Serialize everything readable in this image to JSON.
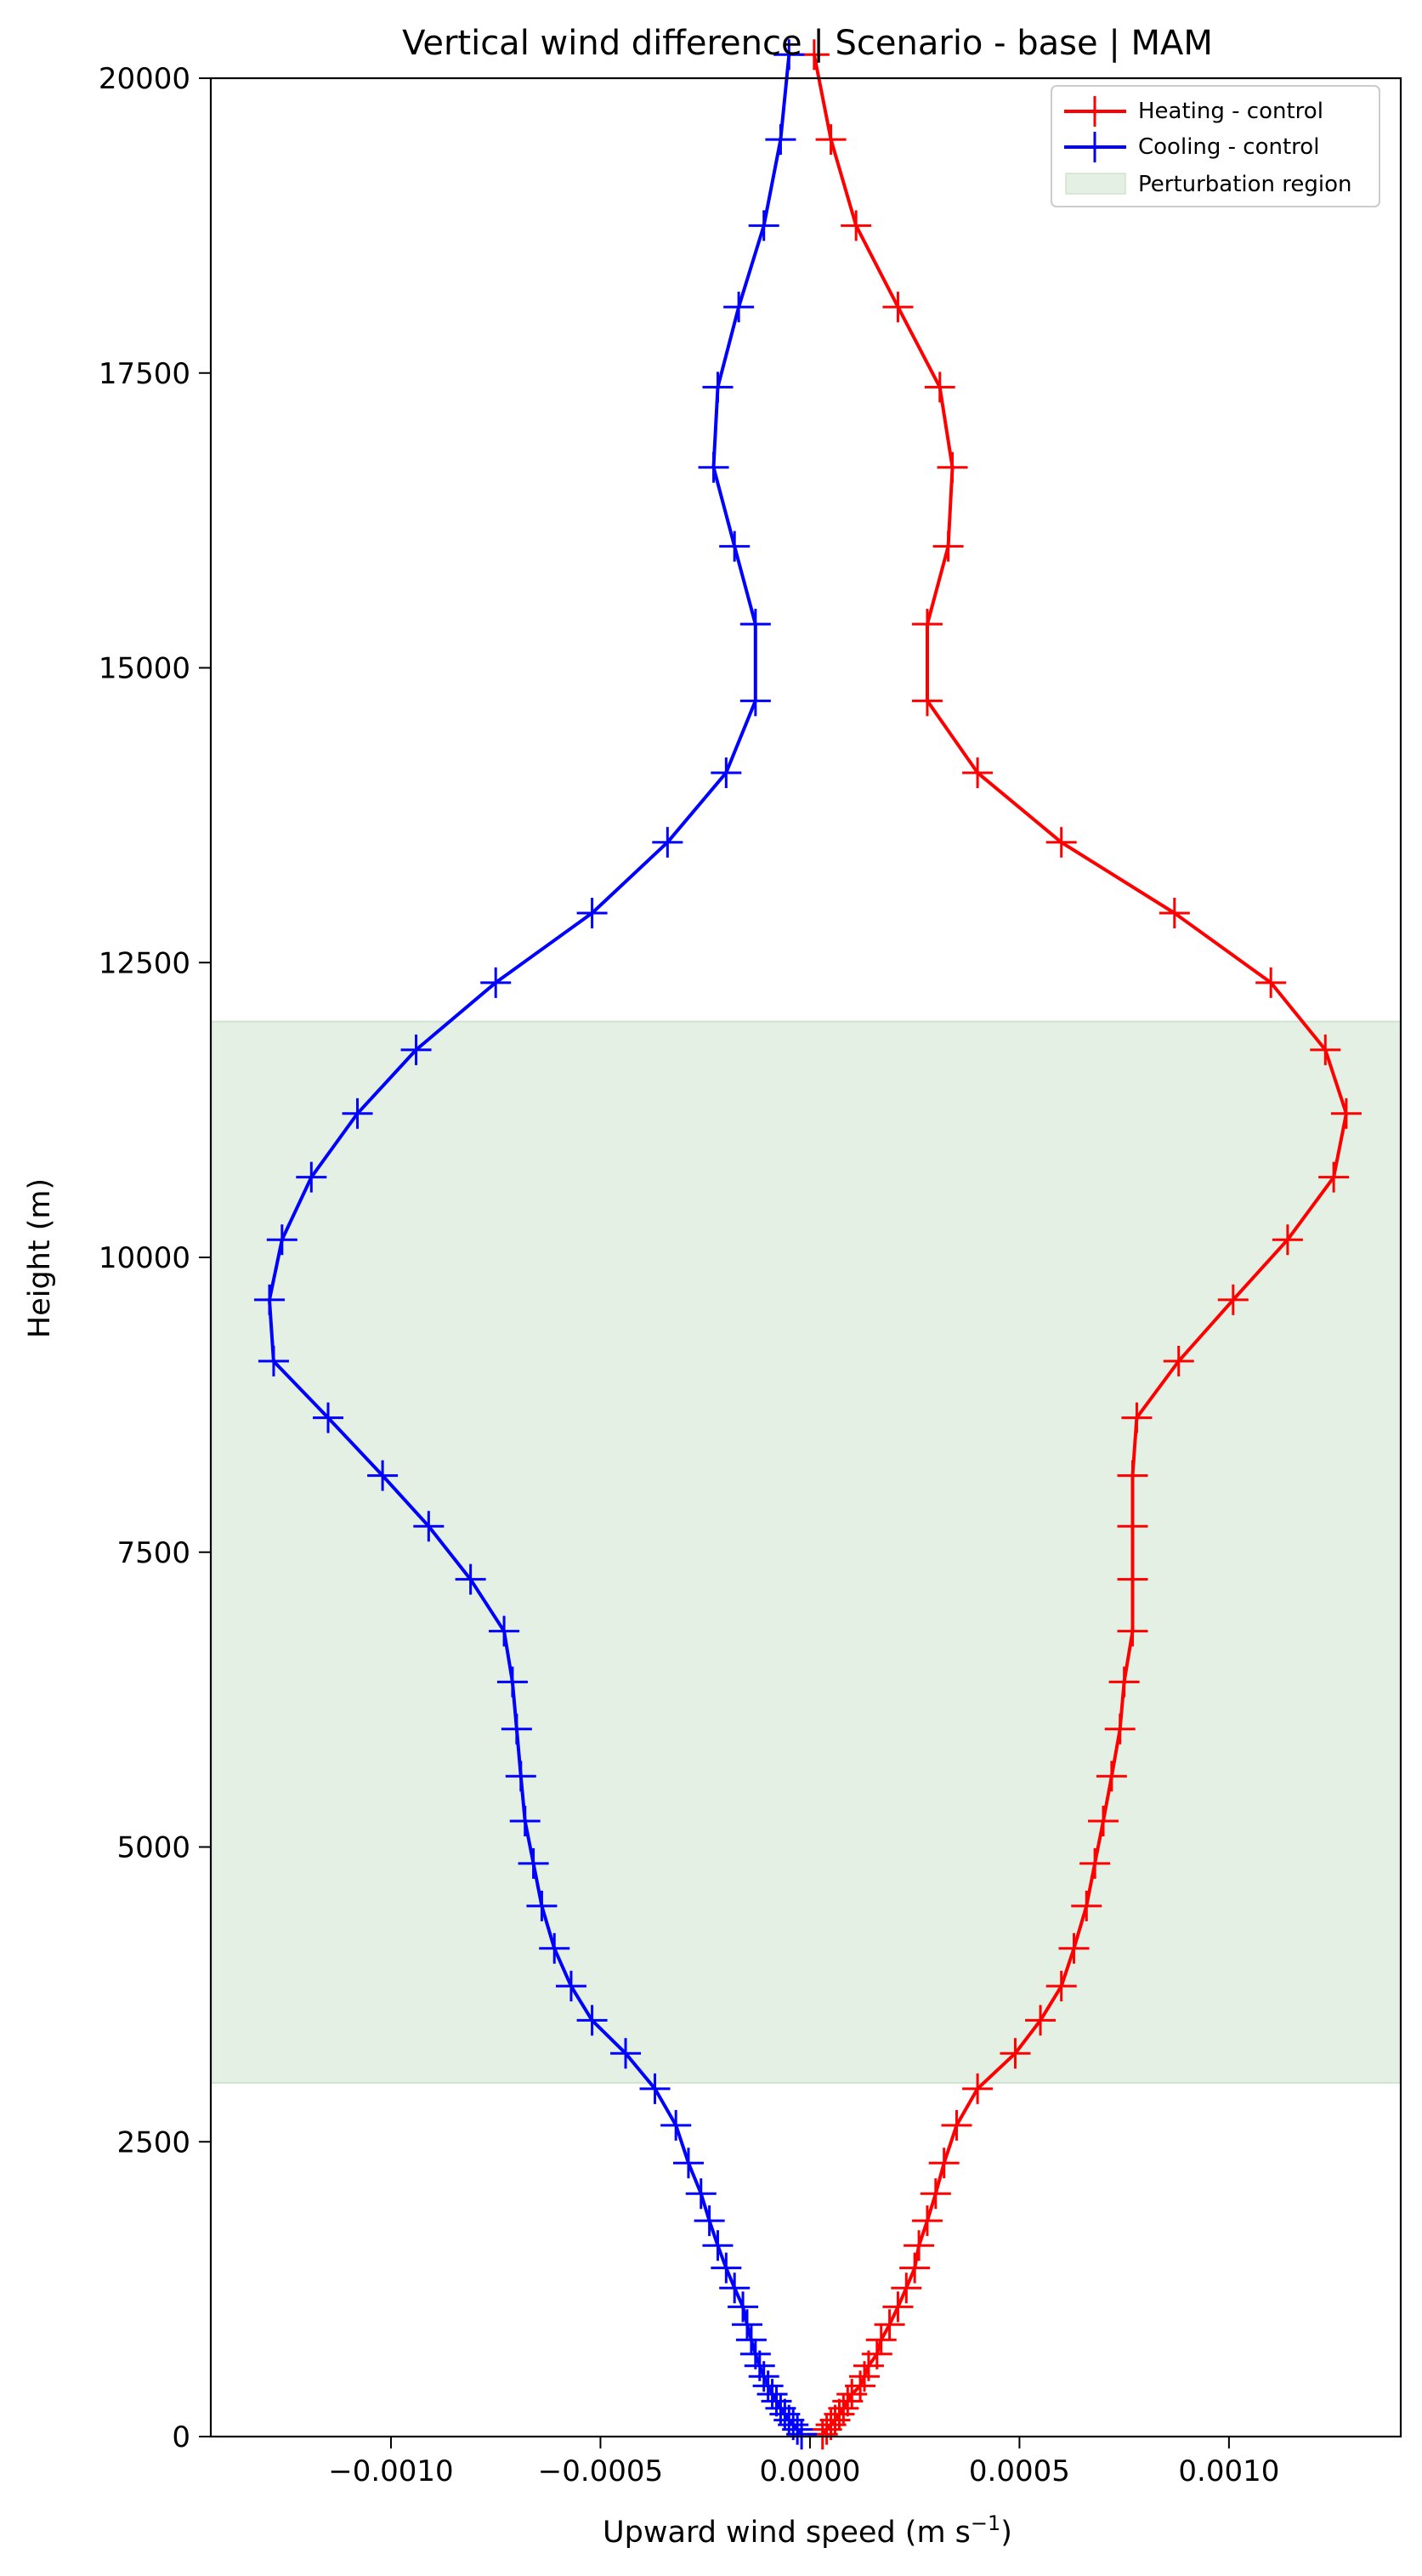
{
  "chart_data": {
    "type": "line",
    "title": "Vertical wind difference | Scenario - base | MAM",
    "xlabel_main": "Upward wind speed (m s",
    "xlabel_sup": "−1",
    "xlabel_end": ")",
    "ylabel": "Height (m)",
    "xlim": [
      -0.00143,
      0.00141
    ],
    "ylim": [
      0,
      20000
    ],
    "x_ticks": [
      -0.001,
      -0.0005,
      0.0,
      0.0005,
      0.001
    ],
    "x_tick_labels": [
      "−0.0010",
      "−0.0005",
      "0.0000",
      "0.0005",
      "0.0010"
    ],
    "y_ticks": [
      0,
      2500,
      5000,
      7500,
      10000,
      12500,
      15000,
      17500,
      20000
    ],
    "y_tick_labels": [
      "0",
      "2500",
      "5000",
      "7500",
      "10000",
      "12500",
      "15000",
      "17500",
      "20000"
    ],
    "legend_position": "top-right",
    "region": {
      "label": "Perturbation region",
      "y_min": 3000,
      "y_max": 12000,
      "color": "#e4f0e4",
      "edge_color": "#cfe3cf"
    },
    "heights": [
      20,
      60,
      100,
      140,
      190,
      240,
      300,
      360,
      430,
      510,
      600,
      700,
      820,
      950,
      1100,
      1260,
      1430,
      1620,
      1830,
      2060,
      2320,
      2640,
      2950,
      3250,
      3530,
      3820,
      4140,
      4500,
      4860,
      5220,
      5600,
      6000,
      6400,
      6830,
      7270,
      7720,
      8150,
      8640,
      9120,
      9640,
      10150,
      10680,
      11220,
      11760,
      12330,
      12920,
      13520,
      14110,
      14720,
      15370,
      16030,
      16700,
      17380,
      18060,
      18750,
      19480,
      20200
    ],
    "series": [
      {
        "name": "Heating - control",
        "color": "#ff0000",
        "values": [
          3e-05,
          4e-05,
          5e-05,
          6e-05,
          7e-05,
          8e-05,
          9e-05,
          0.0001,
          0.00012,
          0.00013,
          0.00014,
          0.00016,
          0.00017,
          0.00019,
          0.00021,
          0.00023,
          0.00025,
          0.00026,
          0.00028,
          0.0003,
          0.00032,
          0.00035,
          0.0004,
          0.00049,
          0.00055,
          0.0006,
          0.00063,
          0.00066,
          0.00068,
          0.0007,
          0.00072,
          0.00074,
          0.00075,
          0.00077,
          0.00077,
          0.00077,
          0.00077,
          0.00078,
          0.00088,
          0.00101,
          0.00114,
          0.00125,
          0.00128,
          0.00123,
          0.0011,
          0.00087,
          0.0006,
          0.0004,
          0.00028,
          0.00028,
          0.00033,
          0.00034,
          0.00031,
          0.00021,
          0.00011,
          5e-05,
          1e-05
        ]
      },
      {
        "name": "Cooling - control",
        "color": "#0000ff",
        "values": [
          -2e-05,
          -3e-05,
          -4e-05,
          -5e-05,
          -6e-05,
          -7e-05,
          -8e-05,
          -9e-05,
          -0.0001,
          -0.00011,
          -0.00012,
          -0.00013,
          -0.00014,
          -0.00015,
          -0.00016,
          -0.00018,
          -0.0002,
          -0.00022,
          -0.00024,
          -0.00026,
          -0.00029,
          -0.00032,
          -0.00037,
          -0.00044,
          -0.00052,
          -0.00057,
          -0.00061,
          -0.00064,
          -0.00066,
          -0.00068,
          -0.00069,
          -0.0007,
          -0.00071,
          -0.00073,
          -0.00081,
          -0.00091,
          -0.00102,
          -0.00115,
          -0.00128,
          -0.00129,
          -0.00126,
          -0.00119,
          -0.00108,
          -0.00094,
          -0.00075,
          -0.00052,
          -0.00034,
          -0.0002,
          -0.00013,
          -0.00013,
          -0.00018,
          -0.00023,
          -0.00022,
          -0.00017,
          -0.00011,
          -7e-05,
          -5e-05
        ]
      }
    ]
  }
}
